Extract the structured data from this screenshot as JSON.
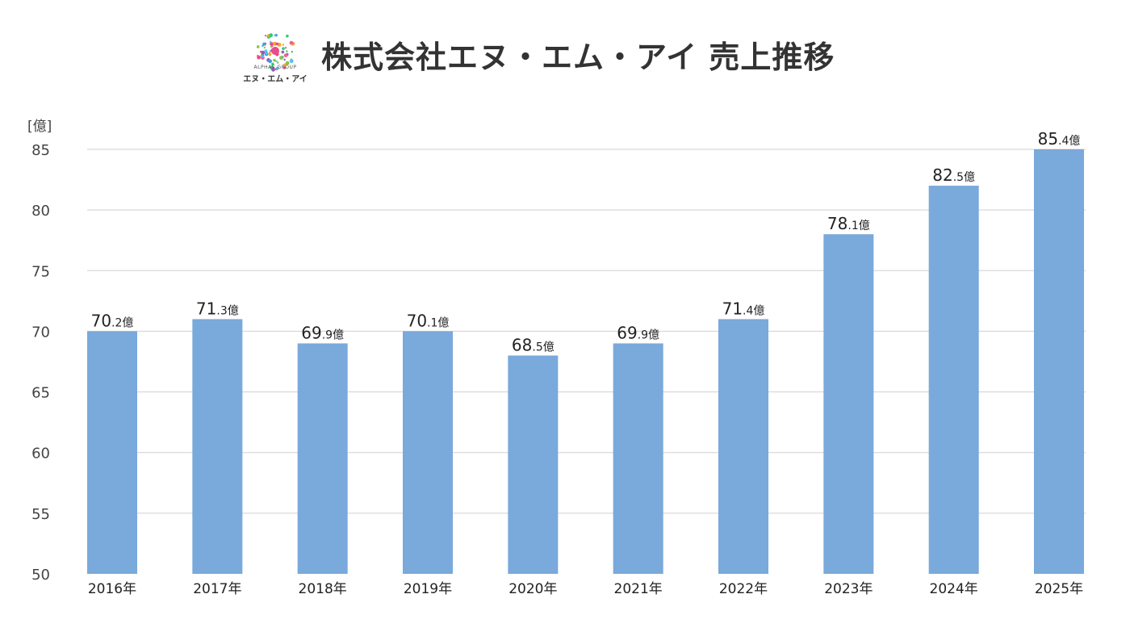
{
  "header": {
    "title": "株式会社エヌ・エム・アイ 売上推移",
    "logo_group": "ALPHAS GROUP",
    "logo_name": "エヌ・エム・アイ"
  },
  "chart_data": {
    "type": "bar",
    "title": "株式会社エヌ・エム・アイ 売上推移",
    "ylabel": "[億]",
    "unit": "億",
    "categories": [
      "2016年",
      "2017年",
      "2018年",
      "2019年",
      "2020年",
      "2021年",
      "2022年",
      "2023年",
      "2024年",
      "2025年"
    ],
    "values": [
      70.2,
      71.3,
      69.9,
      70.1,
      68.5,
      69.9,
      71.4,
      78.1,
      82.5,
      85.4
    ],
    "ylim": [
      50,
      85
    ],
    "yticks": [
      50,
      55,
      60,
      65,
      70,
      75,
      80,
      85
    ],
    "grid": true,
    "bar_color": "#7aa9db",
    "legend": "none"
  }
}
